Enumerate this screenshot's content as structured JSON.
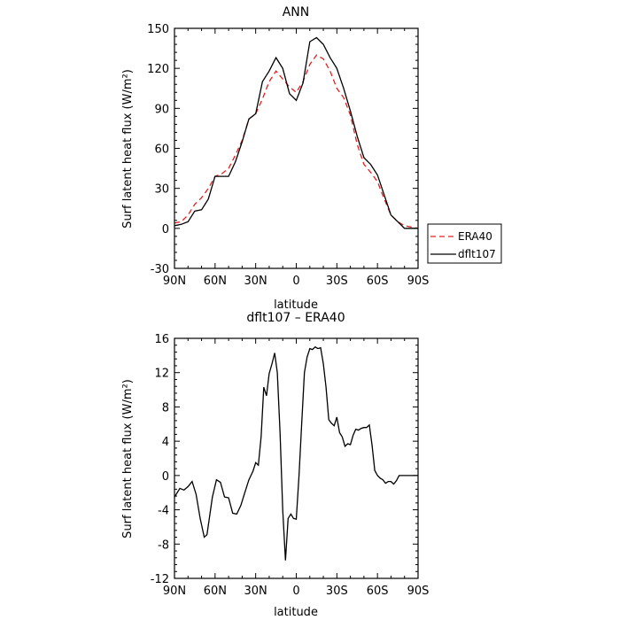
{
  "chart_data": [
    {
      "type": "line",
      "title": "ANN",
      "xlabel": "latitude",
      "ylabel": "Surf latent heat flux (W/m²)",
      "xlim": [
        -90,
        90
      ],
      "ylim": [
        -30,
        150
      ],
      "x_ticks": [
        {
          "value": -90,
          "label": "90N"
        },
        {
          "value": -60,
          "label": "60N"
        },
        {
          "value": -30,
          "label": "30N"
        },
        {
          "value": 0,
          "label": "0"
        },
        {
          "value": 30,
          "label": "30S"
        },
        {
          "value": 60,
          "label": "60S"
        },
        {
          "value": 90,
          "label": "90S"
        }
      ],
      "y_ticks": [
        -30,
        0,
        30,
        60,
        90,
        120,
        150
      ],
      "legend_position": "right",
      "series": [
        {
          "name": "ERA40",
          "color": "#e02020",
          "style": "dashed",
          "x": [
            -90,
            -85,
            -80,
            -75,
            -70,
            -65,
            -60,
            -55,
            -50,
            -45,
            -40,
            -35,
            -30,
            -25,
            -20,
            -15,
            -10,
            -5,
            0,
            5,
            10,
            15,
            20,
            25,
            30,
            35,
            40,
            45,
            50,
            55,
            60,
            65,
            70,
            75,
            80,
            85,
            90
          ],
          "y": [
            4,
            5,
            10,
            18,
            23,
            30,
            39,
            41,
            45,
            55,
            66,
            82,
            86,
            97,
            110,
            118,
            112,
            106,
            102,
            110,
            123,
            130,
            127,
            118,
            105,
            98,
            85,
            63,
            48,
            42,
            35,
            22,
            10,
            5,
            2,
            1,
            0
          ]
        },
        {
          "name": "dflt107",
          "color": "#000000",
          "style": "solid",
          "x": [
            -90,
            -85,
            -80,
            -75,
            -70,
            -65,
            -60,
            -55,
            -50,
            -45,
            -40,
            -35,
            -30,
            -25,
            -20,
            -15,
            -10,
            -5,
            0,
            5,
            10,
            15,
            20,
            25,
            30,
            35,
            40,
            45,
            50,
            55,
            60,
            65,
            70,
            75,
            80,
            85,
            90
          ],
          "y": [
            2,
            3,
            5,
            13,
            14,
            22,
            39,
            39,
            39,
            50,
            65,
            82,
            86,
            110,
            118,
            128,
            120,
            101,
            96,
            109,
            140,
            143,
            138,
            128,
            120,
            105,
            88,
            69,
            53,
            48,
            40,
            25,
            10,
            5,
            0,
            0,
            0
          ]
        }
      ]
    },
    {
      "type": "line",
      "title": "dflt107 – ERA40",
      "xlabel": "latitude",
      "ylabel": "Surf latent heat flux (W/m²)",
      "xlim": [
        -90,
        90
      ],
      "ylim": [
        -12,
        16
      ],
      "x_ticks": [
        {
          "value": -90,
          "label": "90N"
        },
        {
          "value": -60,
          "label": "60N"
        },
        {
          "value": -30,
          "label": "30N"
        },
        {
          "value": 0,
          "label": "0"
        },
        {
          "value": 30,
          "label": "30S"
        },
        {
          "value": 60,
          "label": "60S"
        },
        {
          "value": 90,
          "label": "90S"
        }
      ],
      "y_ticks": [
        -12,
        -8,
        -4,
        0,
        4,
        8,
        12,
        16
      ],
      "series": [
        {
          "color": "#000000",
          "style": "solid",
          "x": [
            -90,
            -86,
            -83,
            -80,
            -77,
            -74,
            -71,
            -68,
            -66,
            -62,
            -59,
            -56,
            -53,
            -50,
            -47,
            -44,
            -41,
            -38,
            -35,
            -32,
            -30,
            -28,
            -26,
            -24,
            -22,
            -20,
            -18,
            -16,
            -14,
            -12,
            -10,
            -8,
            -6,
            -4,
            -2,
            0,
            2,
            4,
            6,
            8,
            10,
            12,
            14,
            16,
            18,
            20,
            22,
            24,
            26,
            28,
            30,
            32,
            34,
            36,
            38,
            40,
            42,
            44,
            46,
            48,
            50,
            52,
            54,
            56,
            58,
            60,
            62,
            64,
            66,
            68,
            70,
            72,
            74,
            76,
            78,
            80,
            82,
            84,
            86,
            88,
            90
          ],
          "y": [
            -2.5,
            -1.5,
            -1.7,
            -1.3,
            -0.7,
            -2.2,
            -5,
            -7.2,
            -6.9,
            -2.5,
            -0.5,
            -0.8,
            -2.5,
            -2.6,
            -4.4,
            -4.5,
            -3.5,
            -2,
            -0.5,
            0.5,
            1.5,
            1.2,
            4.5,
            10.3,
            9.3,
            11.9,
            13,
            14.3,
            12,
            5,
            -4,
            -9.9,
            -5,
            -4.5,
            -5,
            -5.1,
            0,
            6,
            12,
            13.8,
            14.8,
            14.7,
            15,
            14.8,
            14.9,
            13,
            10.3,
            6.5,
            6.1,
            5.8,
            6.8,
            5,
            4.5,
            3.4,
            3.7,
            3.6,
            4.7,
            5.4,
            5.3,
            5.5,
            5.6,
            5.6,
            5.9,
            3.5,
            0.6,
            0,
            -0.3,
            -0.5,
            -0.9,
            -0.7,
            -0.7,
            -1,
            -0.6,
            0,
            0,
            0,
            0,
            0,
            0,
            0,
            0
          ]
        }
      ]
    }
  ]
}
